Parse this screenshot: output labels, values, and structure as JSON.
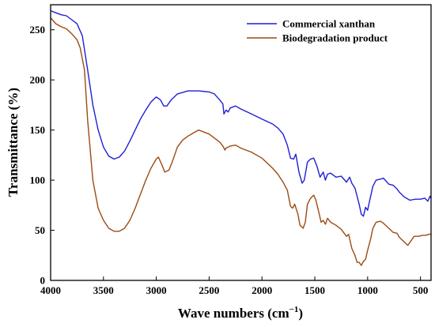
{
  "chart_data": {
    "type": "line",
    "xlabel": "Wave numbers (cm",
    "xlabel_sup": "−1",
    "xlabel_close": ")",
    "ylabel": "Transmittance (%)",
    "xlim": [
      4000,
      400
    ],
    "ylim": [
      0,
      275
    ],
    "x_ticks": [
      4000,
      3500,
      3000,
      2500,
      2000,
      1500,
      1000,
      500
    ],
    "x_tick_labels": [
      "4000",
      "3500",
      "3000",
      "2500",
      "2000",
      "1500",
      "1000",
      "500"
    ],
    "y_ticks": [
      0,
      50,
      100,
      150,
      200,
      250
    ],
    "y_tick_labels": [
      "0",
      "50",
      "100",
      "150",
      "200",
      "250"
    ],
    "legend_position": "top-right",
    "grid": false,
    "series": [
      {
        "name": "Commercial xanthan",
        "color": "#1f1fd6",
        "points": [
          [
            4000,
            269
          ],
          [
            3950,
            267
          ],
          [
            3900,
            265
          ],
          [
            3850,
            264
          ],
          [
            3800,
            260
          ],
          [
            3750,
            256
          ],
          [
            3700,
            244
          ],
          [
            3650,
            210
          ],
          [
            3600,
            175
          ],
          [
            3550,
            150
          ],
          [
            3500,
            133
          ],
          [
            3450,
            124
          ],
          [
            3400,
            121
          ],
          [
            3350,
            123
          ],
          [
            3300,
            129
          ],
          [
            3250,
            139
          ],
          [
            3200,
            150
          ],
          [
            3150,
            161
          ],
          [
            3100,
            170
          ],
          [
            3050,
            178
          ],
          [
            3000,
            183
          ],
          [
            2960,
            180
          ],
          [
            2930,
            174
          ],
          [
            2900,
            174
          ],
          [
            2860,
            180
          ],
          [
            2800,
            186
          ],
          [
            2700,
            189
          ],
          [
            2600,
            189
          ],
          [
            2500,
            188
          ],
          [
            2450,
            186
          ],
          [
            2400,
            180
          ],
          [
            2370,
            176
          ],
          [
            2360,
            166
          ],
          [
            2340,
            170
          ],
          [
            2320,
            168
          ],
          [
            2300,
            172
          ],
          [
            2250,
            174
          ],
          [
            2200,
            171
          ],
          [
            2100,
            166
          ],
          [
            2000,
            161
          ],
          [
            1900,
            156
          ],
          [
            1850,
            152
          ],
          [
            1800,
            146
          ],
          [
            1760,
            135
          ],
          [
            1730,
            122
          ],
          [
            1700,
            121
          ],
          [
            1680,
            126
          ],
          [
            1650,
            108
          ],
          [
            1620,
            97
          ],
          [
            1600,
            100
          ],
          [
            1570,
            118
          ],
          [
            1540,
            121
          ],
          [
            1510,
            122
          ],
          [
            1480,
            114
          ],
          [
            1450,
            103
          ],
          [
            1420,
            108
          ],
          [
            1400,
            100
          ],
          [
            1380,
            106
          ],
          [
            1350,
            107
          ],
          [
            1300,
            103
          ],
          [
            1250,
            104
          ],
          [
            1200,
            98
          ],
          [
            1170,
            103
          ],
          [
            1150,
            97
          ],
          [
            1120,
            92
          ],
          [
            1100,
            84
          ],
          [
            1080,
            76
          ],
          [
            1060,
            66
          ],
          [
            1040,
            64
          ],
          [
            1020,
            73
          ],
          [
            1000,
            70
          ],
          [
            980,
            80
          ],
          [
            950,
            94
          ],
          [
            920,
            100
          ],
          [
            880,
            101
          ],
          [
            850,
            102
          ],
          [
            800,
            96
          ],
          [
            760,
            95
          ],
          [
            720,
            91
          ],
          [
            700,
            88
          ],
          [
            650,
            83
          ],
          [
            600,
            80
          ],
          [
            550,
            81
          ],
          [
            500,
            81
          ],
          [
            460,
            82
          ],
          [
            430,
            79
          ],
          [
            410,
            84
          ],
          [
            400,
            82
          ]
        ]
      },
      {
        "name": "Biodegradation product",
        "color": "#9c4a14",
        "points": [
          [
            4000,
            262
          ],
          [
            3950,
            256
          ],
          [
            3900,
            253
          ],
          [
            3850,
            251
          ],
          [
            3800,
            246
          ],
          [
            3750,
            240
          ],
          [
            3720,
            232
          ],
          [
            3680,
            210
          ],
          [
            3650,
            160
          ],
          [
            3600,
            100
          ],
          [
            3550,
            72
          ],
          [
            3500,
            60
          ],
          [
            3450,
            52
          ],
          [
            3400,
            49
          ],
          [
            3350,
            49
          ],
          [
            3300,
            52
          ],
          [
            3250,
            60
          ],
          [
            3200,
            72
          ],
          [
            3150,
            86
          ],
          [
            3100,
            100
          ],
          [
            3050,
            112
          ],
          [
            3000,
            121
          ],
          [
            2980,
            123
          ],
          [
            2950,
            116
          ],
          [
            2920,
            108
          ],
          [
            2880,
            110
          ],
          [
            2850,
            118
          ],
          [
            2800,
            133
          ],
          [
            2750,
            140
          ],
          [
            2700,
            144
          ],
          [
            2650,
            147
          ],
          [
            2600,
            150
          ],
          [
            2550,
            148
          ],
          [
            2500,
            146
          ],
          [
            2450,
            142
          ],
          [
            2400,
            138
          ],
          [
            2370,
            134
          ],
          [
            2350,
            130
          ],
          [
            2340,
            132
          ],
          [
            2320,
            133
          ],
          [
            2300,
            134
          ],
          [
            2250,
            135
          ],
          [
            2200,
            132
          ],
          [
            2100,
            128
          ],
          [
            2000,
            122
          ],
          [
            1950,
            117
          ],
          [
            1900,
            112
          ],
          [
            1850,
            106
          ],
          [
            1800,
            98
          ],
          [
            1760,
            90
          ],
          [
            1730,
            74
          ],
          [
            1710,
            72
          ],
          [
            1690,
            76
          ],
          [
            1660,
            66
          ],
          [
            1640,
            55
          ],
          [
            1610,
            52
          ],
          [
            1590,
            58
          ],
          [
            1570,
            76
          ],
          [
            1540,
            82
          ],
          [
            1510,
            85
          ],
          [
            1490,
            80
          ],
          [
            1460,
            67
          ],
          [
            1440,
            58
          ],
          [
            1420,
            60
          ],
          [
            1400,
            56
          ],
          [
            1380,
            62
          ],
          [
            1350,
            58
          ],
          [
            1300,
            55
          ],
          [
            1250,
            51
          ],
          [
            1200,
            44
          ],
          [
            1180,
            46
          ],
          [
            1150,
            32
          ],
          [
            1120,
            25
          ],
          [
            1100,
            18
          ],
          [
            1080,
            18
          ],
          [
            1060,
            15
          ],
          [
            1040,
            19
          ],
          [
            1020,
            21
          ],
          [
            1000,
            30
          ],
          [
            970,
            42
          ],
          [
            950,
            52
          ],
          [
            920,
            58
          ],
          [
            880,
            59
          ],
          [
            850,
            57
          ],
          [
            800,
            52
          ],
          [
            760,
            48
          ],
          [
            720,
            47
          ],
          [
            700,
            43
          ],
          [
            650,
            38
          ],
          [
            620,
            35
          ],
          [
            600,
            38
          ],
          [
            560,
            44
          ],
          [
            520,
            44
          ],
          [
            480,
            45
          ],
          [
            450,
            45
          ],
          [
            420,
            46
          ],
          [
            400,
            46
          ]
        ]
      }
    ]
  }
}
